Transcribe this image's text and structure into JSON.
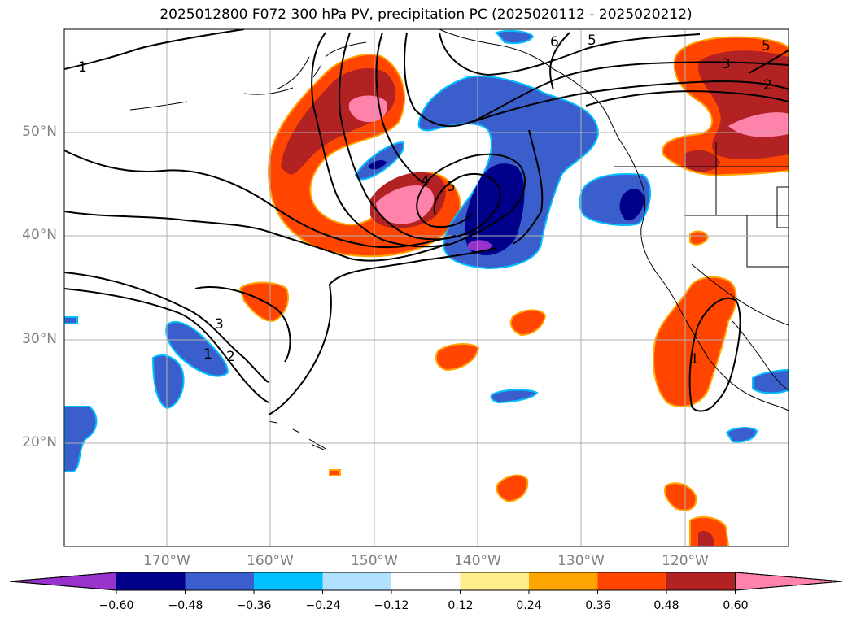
{
  "title": "2025012800 F072 300 hPa PV, precipitation PC (2025020112 - 2025020212)",
  "lat_labels": [
    "50°N",
    "40°N",
    "30°N",
    "20°N"
  ],
  "lon_labels": [
    "170°W",
    "160°W",
    "150°W",
    "140°W",
    "130°W",
    "120°W"
  ],
  "contour_labels": [
    "1",
    "6",
    "5",
    "5",
    "3",
    "2",
    "4",
    "5",
    "3",
    "1",
    "2",
    "1"
  ],
  "colorbar": {
    "ticks": [
      "−0.60",
      "−0.48",
      "−0.36",
      "−0.24",
      "−0.12",
      "0.12",
      "0.24",
      "0.36",
      "0.48",
      "0.60"
    ],
    "colors": [
      "#9932cc",
      "#00008b",
      "#3a5fcd",
      "#00bfff",
      "#b0e2ff",
      "#ffffff",
      "#ffec8b",
      "#ffa500",
      "#ff4500",
      "#b22222",
      "#ff82ab"
    ]
  },
  "colors": {
    "grid": "#b0b0b0",
    "coast": "#000000",
    "contour": "#000000"
  }
}
